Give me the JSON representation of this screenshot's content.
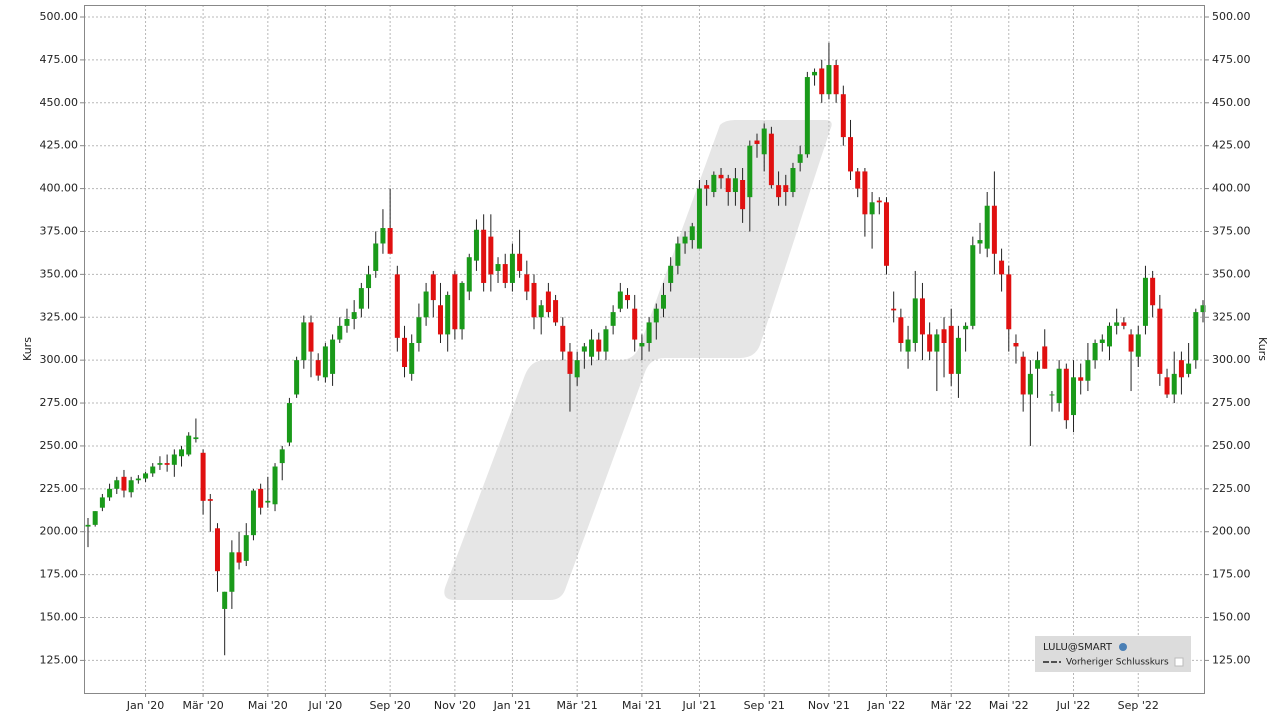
{
  "chart_data": {
    "type": "candlestick",
    "y_label": "Kurs",
    "legend": [
      "LULU@SMART",
      "Vorheriger Schlusskurs"
    ],
    "up_color": "#1a9a1a",
    "down_color": "#e01010",
    "grid": true,
    "ylim": [
      106,
      507
    ],
    "yticks": [
      {
        "value": 125,
        "label": "125.00"
      },
      {
        "value": 150,
        "label": "150.00"
      },
      {
        "value": 175,
        "label": "175.00"
      },
      {
        "value": 200,
        "label": "200.00"
      },
      {
        "value": 225,
        "label": "225.00"
      },
      {
        "value": 250,
        "label": "250.00"
      },
      {
        "value": 275,
        "label": "275.00"
      },
      {
        "value": 300,
        "label": "300.00"
      },
      {
        "value": 325,
        "label": "325.00"
      },
      {
        "value": 350,
        "label": "350.00"
      },
      {
        "value": 375,
        "label": "375.00"
      },
      {
        "value": 400,
        "label": "400.00"
      },
      {
        "value": 425,
        "label": "425.00"
      },
      {
        "value": 450,
        "label": "450.00"
      },
      {
        "value": 475,
        "label": "475.00"
      },
      {
        "value": 500,
        "label": "500.00"
      }
    ],
    "categories": [
      null,
      null,
      null,
      null,
      null,
      null,
      null,
      null,
      "Jan '20",
      null,
      null,
      null,
      null,
      null,
      null,
      null,
      "Mär '20",
      null,
      null,
      null,
      null,
      null,
      null,
      null,
      null,
      "Mai '20",
      null,
      null,
      null,
      null,
      null,
      null,
      null,
      "Jul '20",
      null,
      null,
      null,
      null,
      null,
      null,
      null,
      null,
      "Sep '20",
      null,
      null,
      null,
      null,
      null,
      null,
      null,
      null,
      "Nov '20",
      null,
      null,
      null,
      null,
      null,
      null,
      null,
      "Jan '21",
      null,
      null,
      null,
      null,
      null,
      null,
      null,
      null,
      "Mär '21",
      null,
      null,
      null,
      null,
      null,
      null,
      null,
      null,
      "Mai '21",
      null,
      null,
      null,
      null,
      null,
      null,
      null,
      "Jul '21",
      null,
      null,
      null,
      null,
      null,
      null,
      null,
      null,
      "Sep '21",
      null,
      null,
      null,
      null,
      null,
      null,
      null,
      null,
      "Nov '21",
      null,
      null,
      null,
      null,
      null,
      null,
      null,
      "Jan '22",
      null,
      null,
      null,
      null,
      null,
      null,
      null,
      null,
      "Mär '22",
      null,
      null,
      null,
      null,
      null,
      null,
      null,
      "Mai '22",
      null,
      null,
      null,
      null,
      null,
      null,
      null,
      null,
      "Jul '22",
      null,
      null,
      null,
      null,
      null,
      null,
      null,
      null,
      "Sep '22",
      null,
      null,
      null,
      null,
      null,
      null,
      null,
      null,
      null
    ],
    "open": [
      203,
      204,
      214,
      220,
      225,
      232,
      223,
      230,
      231,
      234,
      239,
      240,
      239,
      244,
      245,
      254,
      246,
      219,
      202,
      155,
      165,
      188,
      183,
      198,
      225,
      217,
      216,
      240,
      252,
      280,
      300,
      322,
      300,
      290,
      292,
      312,
      320,
      324,
      330,
      342,
      352,
      368,
      377,
      350,
      313,
      292,
      310,
      325,
      350,
      332,
      315,
      350,
      318,
      340,
      358,
      376,
      372,
      352,
      356,
      345,
      362,
      350,
      345,
      325,
      340,
      335,
      320,
      305,
      290,
      305,
      302,
      312,
      305,
      320,
      330,
      338,
      330,
      308,
      310,
      322,
      330,
      345,
      355,
      368,
      370,
      365,
      402,
      398,
      408,
      406,
      398,
      405,
      395,
      428,
      420,
      432,
      402,
      402,
      398,
      415,
      420,
      466,
      470,
      455,
      472,
      455,
      430,
      410,
      410,
      385,
      393,
      392,
      330,
      325,
      305,
      310,
      336,
      315,
      305,
      318,
      320,
      292,
      318,
      320,
      368,
      365,
      390,
      358,
      350,
      310,
      302,
      280,
      295,
      308,
      280,
      275,
      295,
      268,
      290,
      288,
      300,
      310,
      308,
      320,
      322,
      315,
      302,
      320,
      348,
      330,
      290,
      280,
      300,
      292,
      300,
      328
    ],
    "high": [
      208,
      212,
      222,
      228,
      232,
      236,
      232,
      233,
      235,
      240,
      244,
      245,
      248,
      250,
      258,
      266,
      248,
      222,
      205,
      165,
      195,
      200,
      205,
      225,
      228,
      232,
      240,
      250,
      278,
      302,
      326,
      326,
      304,
      310,
      315,
      325,
      330,
      335,
      345,
      355,
      375,
      388,
      400,
      355,
      320,
      315,
      333,
      345,
      352,
      345,
      340,
      352,
      346,
      362,
      382,
      385,
      385,
      360,
      362,
      368,
      376,
      358,
      350,
      335,
      345,
      338,
      325,
      310,
      305,
      310,
      318,
      316,
      320,
      332,
      345,
      342,
      338,
      315,
      325,
      333,
      345,
      360,
      372,
      375,
      380,
      405,
      405,
      410,
      412,
      408,
      412,
      412,
      428,
      432,
      438,
      436,
      410,
      408,
      415,
      425,
      468,
      470,
      475,
      485,
      475,
      460,
      440,
      412,
      412,
      398,
      395,
      395,
      340,
      330,
      320,
      352,
      345,
      322,
      318,
      325,
      330,
      320,
      322,
      372,
      380,
      398,
      410,
      365,
      355,
      315,
      305,
      300,
      305,
      318,
      282,
      300,
      298,
      300,
      298,
      310,
      312,
      315,
      322,
      330,
      325,
      318,
      320,
      355,
      352,
      338,
      295,
      305,
      305,
      310,
      330,
      335
    ],
    "low": [
      191,
      203,
      212,
      218,
      222,
      220,
      220,
      228,
      229,
      232,
      236,
      235,
      232,
      238,
      244,
      252,
      210,
      200,
      165,
      128,
      155,
      178,
      180,
      195,
      210,
      214,
      212,
      230,
      250,
      278,
      295,
      290,
      288,
      287,
      285,
      310,
      316,
      318,
      325,
      330,
      348,
      362,
      365,
      305,
      290,
      288,
      305,
      320,
      325,
      310,
      305,
      312,
      312,
      335,
      352,
      340,
      340,
      345,
      342,
      340,
      348,
      335,
      318,
      315,
      325,
      320,
      300,
      270,
      285,
      295,
      297,
      300,
      300,
      315,
      328,
      330,
      305,
      300,
      305,
      312,
      325,
      340,
      350,
      362,
      365,
      365,
      390,
      395,
      400,
      390,
      390,
      380,
      375,
      418,
      410,
      400,
      390,
      390,
      395,
      410,
      418,
      460,
      450,
      452,
      450,
      425,
      405,
      395,
      372,
      365,
      385,
      350,
      322,
      305,
      295,
      305,
      300,
      300,
      282,
      290,
      285,
      278,
      305,
      318,
      362,
      360,
      350,
      340,
      305,
      298,
      270,
      250,
      278,
      295,
      270,
      270,
      260,
      258,
      280,
      282,
      295,
      305,
      300,
      315,
      318,
      282,
      296,
      315,
      325,
      285,
      278,
      275,
      280,
      290,
      295,
      322
    ],
    "close": [
      204,
      212,
      220,
      225,
      230,
      224,
      230,
      231,
      234,
      238,
      240,
      239,
      245,
      248,
      256,
      255,
      218,
      218,
      177,
      165,
      188,
      182,
      198,
      224,
      214,
      218,
      238,
      248,
      275,
      300,
      322,
      305,
      291,
      308,
      312,
      320,
      324,
      328,
      342,
      350,
      368,
      377,
      362,
      313,
      296,
      310,
      325,
      340,
      335,
      315,
      338,
      318,
      345,
      360,
      376,
      345,
      350,
      356,
      345,
      362,
      352,
      340,
      325,
      332,
      328,
      322,
      305,
      292,
      300,
      308,
      312,
      305,
      318,
      328,
      340,
      335,
      312,
      310,
      322,
      330,
      338,
      355,
      368,
      372,
      378,
      400,
      400,
      408,
      406,
      398,
      406,
      388,
      425,
      426,
      435,
      402,
      395,
      398,
      412,
      420,
      465,
      468,
      455,
      472,
      455,
      430,
      410,
      400,
      385,
      392,
      392,
      355,
      329,
      310,
      312,
      336,
      315,
      305,
      315,
      310,
      292,
      313,
      320,
      367,
      370,
      390,
      362,
      350,
      318,
      308,
      280,
      292,
      300,
      295,
      280,
      295,
      265,
      290,
      288,
      300,
      310,
      312,
      320,
      322,
      320,
      305,
      315,
      348,
      332,
      292,
      280,
      292,
      290,
      298,
      328,
      332
    ]
  }
}
